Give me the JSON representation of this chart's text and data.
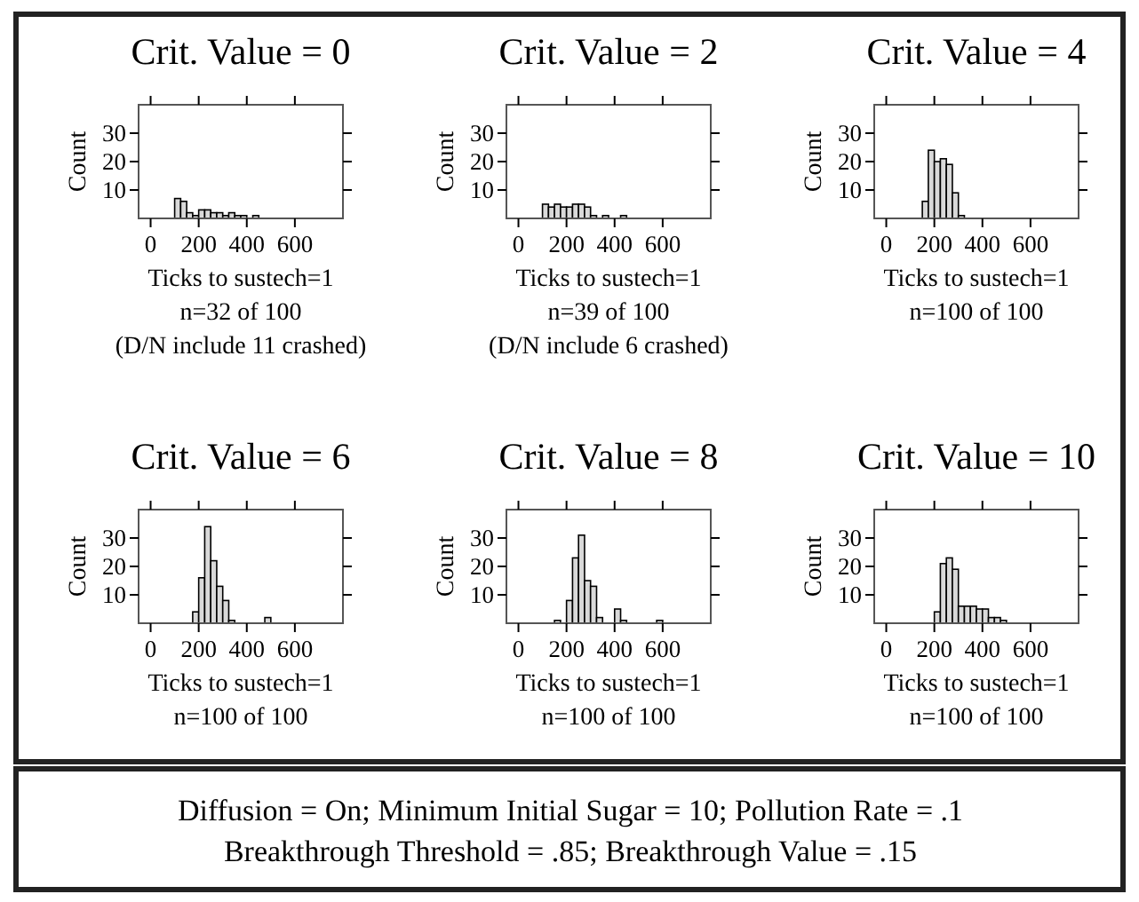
{
  "chart_data": [
    {
      "type": "histogram",
      "title": "Crit. Value = 0",
      "ylabel": "Count",
      "xlabel": "Ticks to sustech=1",
      "annotations": [
        "n=32 of 100",
        "(D/N include 11 crashed)"
      ],
      "bins": [
        100,
        125,
        150,
        175,
        200,
        225,
        250,
        275,
        300,
        325,
        350,
        375,
        400,
        425,
        450,
        475
      ],
      "values": [
        7,
        6,
        2,
        1,
        3,
        3,
        2,
        2,
        1,
        2,
        1,
        1,
        0,
        1,
        0
      ],
      "color": "#d9d9d9",
      "xlim": [
        -50,
        800
      ],
      "ylim": [
        0,
        40
      ],
      "xticks": [
        0,
        200,
        400,
        600
      ],
      "yticks": [
        10,
        20,
        30
      ],
      "grid": false
    },
    {
      "type": "histogram",
      "title": "Crit. Value = 2",
      "ylabel": "Count",
      "xlabel": "Ticks to sustech=1",
      "annotations": [
        "n=39 of 100",
        "(D/N include 6 crashed)"
      ],
      "bins": [
        100,
        125,
        150,
        175,
        200,
        225,
        250,
        275,
        300,
        325,
        350,
        375,
        400,
        425,
        450
      ],
      "values": [
        5,
        4,
        5,
        4,
        4,
        5,
        5,
        4,
        1,
        0,
        1,
        0,
        0,
        1
      ],
      "color": "#d9d9d9",
      "xlim": [
        -50,
        800
      ],
      "ylim": [
        0,
        40
      ],
      "xticks": [
        0,
        200,
        400,
        600
      ],
      "yticks": [
        10,
        20,
        30
      ],
      "grid": false
    },
    {
      "type": "histogram",
      "title": "Crit. Value = 4",
      "ylabel": "Count",
      "xlabel": "Ticks to sustech=1",
      "annotations": [
        "n=100 of 100"
      ],
      "bins": [
        150,
        175,
        200,
        225,
        250,
        275,
        300,
        325
      ],
      "values": [
        6,
        24,
        20,
        21,
        19,
        9,
        1
      ],
      "color": "#d9d9d9",
      "xlim": [
        -50,
        800
      ],
      "ylim": [
        0,
        40
      ],
      "xticks": [
        0,
        200,
        400,
        600
      ],
      "yticks": [
        10,
        20,
        30
      ],
      "grid": false
    },
    {
      "type": "histogram",
      "title": "Crit. Value = 6",
      "ylabel": "Count",
      "xlabel": "Ticks to sustech=1",
      "annotations": [
        "n=100 of 100"
      ],
      "bins": [
        175,
        200,
        225,
        250,
        275,
        300,
        325,
        350,
        375,
        400,
        425,
        450,
        475,
        500
      ],
      "values": [
        4,
        16,
        34,
        22,
        13,
        8,
        1,
        0,
        0,
        0,
        0,
        0,
        2
      ],
      "color": "#d9d9d9",
      "xlim": [
        -50,
        800
      ],
      "ylim": [
        0,
        40
      ],
      "xticks": [
        0,
        200,
        400,
        600
      ],
      "yticks": [
        10,
        20,
        30
      ],
      "grid": false
    },
    {
      "type": "histogram",
      "title": "Crit. Value = 8",
      "ylabel": "Count",
      "xlabel": "Ticks to sustech=1",
      "annotations": [
        "n=100 of 100"
      ],
      "bins": [
        150,
        175,
        200,
        225,
        250,
        275,
        300,
        325,
        350,
        375,
        400,
        425,
        450,
        475,
        500,
        525,
        550,
        575,
        600
      ],
      "values": [
        1,
        0,
        8,
        23,
        31,
        15,
        13,
        2,
        0,
        0,
        5,
        1,
        0,
        0,
        0,
        0,
        0,
        1
      ],
      "color": "#d9d9d9",
      "xlim": [
        -50,
        800
      ],
      "ylim": [
        0,
        40
      ],
      "xticks": [
        0,
        200,
        400,
        600
      ],
      "yticks": [
        10,
        20,
        30
      ],
      "grid": false
    },
    {
      "type": "histogram",
      "title": "Crit. Value = 10",
      "ylabel": "Count",
      "xlabel": "Ticks to sustech=1",
      "annotations": [
        "n=100 of 100"
      ],
      "bins": [
        200,
        225,
        250,
        275,
        300,
        325,
        350,
        375,
        400,
        425,
        450,
        475,
        500
      ],
      "values": [
        4,
        21,
        23,
        19,
        6,
        6,
        6,
        5,
        5,
        2,
        2,
        1
      ],
      "color": "#d9d9d9",
      "xlim": [
        -50,
        800
      ],
      "ylim": [
        0,
        40
      ],
      "xticks": [
        0,
        200,
        400,
        600
      ],
      "yticks": [
        10,
        20,
        30
      ],
      "grid": false
    },
    {
      "type": "other",
      "annotations": [
        "Diffusion = On; Minimum Initial Sugar = 10; Pollution Rate = .1",
        "Breakthrough Threshold = .85; Breakthrough Value = .15"
      ]
    }
  ]
}
